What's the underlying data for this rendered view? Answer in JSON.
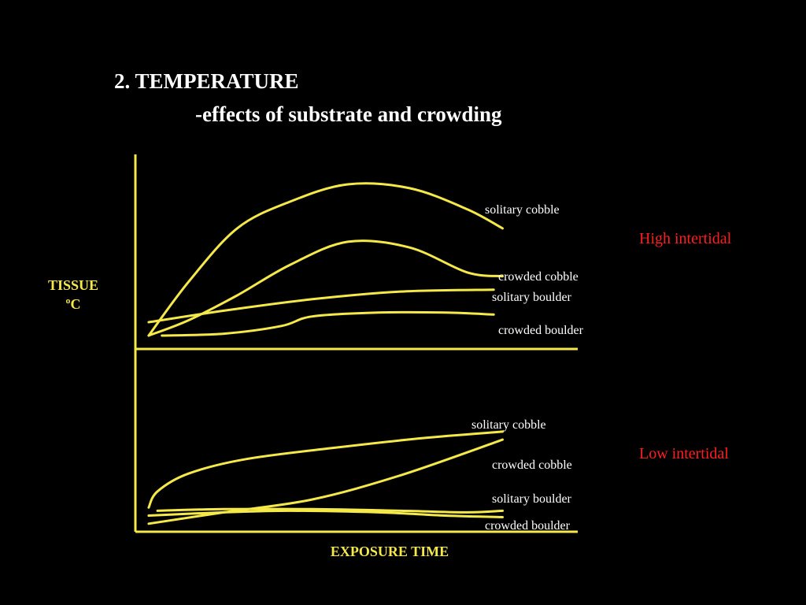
{
  "slide": {
    "title_line1": "2. TEMPERATURE",
    "title_line2": "-effects of substrate and crowding"
  },
  "chart_data": [
    {
      "type": "line",
      "panel_label": "High intertidal",
      "ylabel": [
        "TISSUE",
        "ºC"
      ],
      "xlabel": "",
      "x_ticks": false,
      "y_ticks": false,
      "line_color": "#f5e94a",
      "label_color": "#ffffff",
      "panel_label_color": "#ff1f1f",
      "x_range": [
        0,
        100
      ],
      "y_range": [
        0,
        100
      ],
      "series": [
        {
          "name": "solitary cobble",
          "points": [
            [
              3,
              7
            ],
            [
              12,
              35
            ],
            [
              23,
              63
            ],
            [
              35,
              77
            ],
            [
              48,
              86
            ],
            [
              62,
              84
            ],
            [
              75,
              73
            ],
            [
              83,
              63
            ]
          ]
        },
        {
          "name": "crowded cobble",
          "points": [
            [
              3,
              7
            ],
            [
              12,
              15
            ],
            [
              23,
              28
            ],
            [
              35,
              44
            ],
            [
              48,
              56
            ],
            [
              62,
              53
            ],
            [
              75,
              40
            ],
            [
              83,
              38
            ]
          ]
        },
        {
          "name": "solitary boulder",
          "points": [
            [
              3,
              14
            ],
            [
              20,
              20
            ],
            [
              40,
              26
            ],
            [
              60,
              30
            ],
            [
              81,
              31
            ]
          ]
        },
        {
          "name": "crowded boulder",
          "points": [
            [
              6,
              7
            ],
            [
              20,
              8
            ],
            [
              33,
              12
            ],
            [
              40,
              17
            ],
            [
              55,
              19
            ],
            [
              70,
              19
            ],
            [
              81,
              18
            ]
          ]
        }
      ]
    },
    {
      "type": "line",
      "panel_label": "Low intertidal",
      "ylabel": [],
      "xlabel": "EXPOSURE TIME",
      "x_ticks": false,
      "y_ticks": false,
      "line_color": "#f5e94a",
      "label_color": "#ffffff",
      "panel_label_color": "#ff1f1f",
      "x_range": [
        0,
        100
      ],
      "y_range": [
        0,
        100
      ],
      "series": [
        {
          "name": "solitary cobble",
          "points": [
            [
              3,
              15
            ],
            [
              5,
              25
            ],
            [
              12,
              36
            ],
            [
              25,
              45
            ],
            [
              45,
              52
            ],
            [
              65,
              58
            ],
            [
              83,
              62
            ]
          ]
        },
        {
          "name": "crowded cobble",
          "points": [
            [
              3,
              5
            ],
            [
              20,
              12
            ],
            [
              40,
              20
            ],
            [
              60,
              35
            ],
            [
              83,
              57
            ]
          ]
        },
        {
          "name": "solitary boulder",
          "points": [
            [
              3,
              10
            ],
            [
              20,
              12
            ],
            [
              35,
              13
            ],
            [
              55,
              12
            ],
            [
              70,
              10
            ],
            [
              83,
              9
            ]
          ]
        },
        {
          "name": "crowded boulder",
          "points": [
            [
              5,
              13
            ],
            [
              20,
              14
            ],
            [
              40,
              14
            ],
            [
              60,
              13
            ],
            [
              75,
              12
            ],
            [
              83,
              13
            ]
          ]
        }
      ]
    }
  ]
}
